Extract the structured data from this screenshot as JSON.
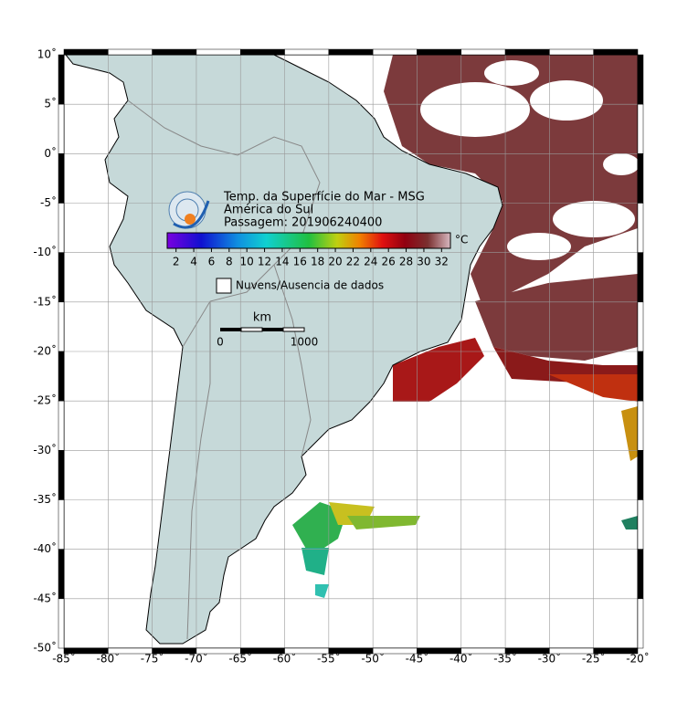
{
  "map": {
    "title": "Temp. da Superfície do Mar - MSG",
    "region": "América do Sul",
    "pass": "Passagem: 201906240400",
    "colorbar": {
      "range": [
        1,
        33
      ],
      "ticks": [
        2,
        4,
        6,
        8,
        10,
        12,
        14,
        16,
        18,
        20,
        22,
        24,
        26,
        28,
        30,
        32
      ],
      "unit": "°C"
    },
    "legend": "Nuvens/Ausencia de dados",
    "scale": {
      "unit": "km",
      "labels": [
        0,
        1000
      ]
    },
    "lon": {
      "range": [
        -85,
        -20
      ],
      "ticks": [
        {
          "value": -85,
          "label": "-85˚"
        },
        {
          "value": -80,
          "label": "-80˚"
        },
        {
          "value": -75,
          "label": "-75˚"
        },
        {
          "value": -70,
          "label": "-70˚"
        },
        {
          "value": -65,
          "label": "-65˚"
        },
        {
          "value": -60,
          "label": "-60˚"
        },
        {
          "value": -55,
          "label": "-55˚"
        },
        {
          "value": -50,
          "label": "-50˚"
        },
        {
          "value": -45,
          "label": "-45˚"
        },
        {
          "value": -40,
          "label": "-40˚"
        },
        {
          "value": -35,
          "label": "-35˚"
        },
        {
          "value": -30,
          "label": "-30˚"
        },
        {
          "value": -25,
          "label": "-25˚"
        },
        {
          "value": -20,
          "label": "-20˚"
        }
      ]
    },
    "lat": {
      "range": [
        -50,
        10
      ],
      "ticks": [
        {
          "value": 10,
          "label": "10˚"
        },
        {
          "value": 5,
          "label": "5˚"
        },
        {
          "value": 0,
          "label": "0˚"
        },
        {
          "value": -5,
          "label": "-5˚"
        },
        {
          "value": -10,
          "label": "-10˚"
        },
        {
          "value": -15,
          "label": "-15˚"
        },
        {
          "value": -20,
          "label": "-20˚"
        },
        {
          "value": -25,
          "label": "-25˚"
        },
        {
          "value": -30,
          "label": "-30˚"
        },
        {
          "value": -35,
          "label": "-35˚"
        },
        {
          "value": -40,
          "label": "-40˚"
        },
        {
          "value": -45,
          "label": "-45˚"
        },
        {
          "value": -50,
          "label": "-50˚"
        }
      ]
    }
  }
}
